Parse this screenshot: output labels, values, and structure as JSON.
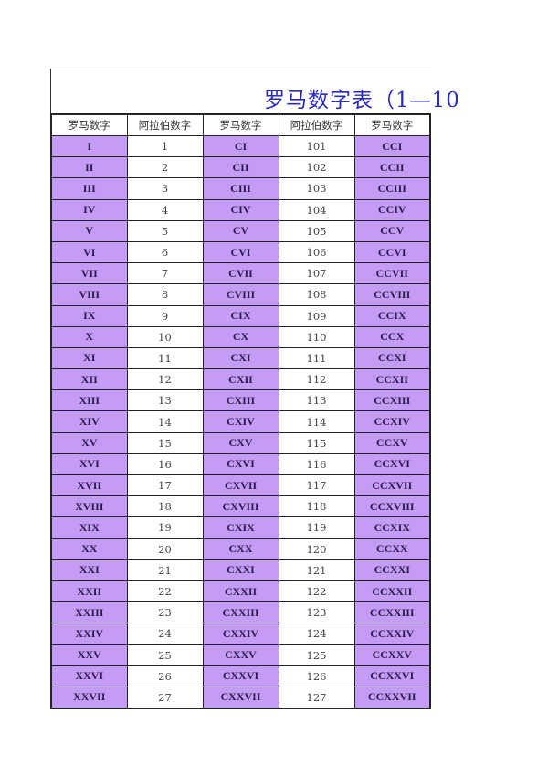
{
  "title": "罗马数字表（1—10",
  "colors": {
    "roman_cell": "#c49cf6",
    "title": "#2a2ac0"
  },
  "headers": [
    "罗马数字",
    "阿拉伯数字",
    "罗马数字",
    "阿拉伯数字",
    "罗马数字"
  ],
  "rows": [
    [
      "I",
      "1",
      "CI",
      "101",
      "CCI"
    ],
    [
      "II",
      "2",
      "CII",
      "102",
      "CCII"
    ],
    [
      "III",
      "3",
      "CIII",
      "103",
      "CCIII"
    ],
    [
      "IV",
      "4",
      "CIV",
      "104",
      "CCIV"
    ],
    [
      "V",
      "5",
      "CV",
      "105",
      "CCV"
    ],
    [
      "VI",
      "6",
      "CVI",
      "106",
      "CCVI"
    ],
    [
      "VII",
      "7",
      "CVII",
      "107",
      "CCVII"
    ],
    [
      "VIII",
      "8",
      "CVIII",
      "108",
      "CCVIII"
    ],
    [
      "IX",
      "9",
      "CIX",
      "109",
      "CCIX"
    ],
    [
      "X",
      "10",
      "CX",
      "110",
      "CCX"
    ],
    [
      "XI",
      "11",
      "CXI",
      "111",
      "CCXI"
    ],
    [
      "XII",
      "12",
      "CXII",
      "112",
      "CCXII"
    ],
    [
      "XIII",
      "13",
      "CXIII",
      "113",
      "CCXIII"
    ],
    [
      "XIV",
      "14",
      "CXIV",
      "114",
      "CCXIV"
    ],
    [
      "XV",
      "15",
      "CXV",
      "115",
      "CCXV"
    ],
    [
      "XVI",
      "16",
      "CXVI",
      "116",
      "CCXVI"
    ],
    [
      "XVII",
      "17",
      "CXVII",
      "117",
      "CCXVII"
    ],
    [
      "XVIII",
      "18",
      "CXVIII",
      "118",
      "CCXVIII"
    ],
    [
      "XIX",
      "19",
      "CXIX",
      "119",
      "CCXIX"
    ],
    [
      "XX",
      "20",
      "CXX",
      "120",
      "CCXX"
    ],
    [
      "XXI",
      "21",
      "CXXI",
      "121",
      "CCXXI"
    ],
    [
      "XXII",
      "22",
      "CXXII",
      "122",
      "CCXXII"
    ],
    [
      "XXIII",
      "23",
      "CXXIII",
      "123",
      "CCXXIII"
    ],
    [
      "XXIV",
      "24",
      "CXXIV",
      "124",
      "CCXXIV"
    ],
    [
      "XXV",
      "25",
      "CXXV",
      "125",
      "CCXXV"
    ],
    [
      "XXVI",
      "26",
      "CXXVI",
      "126",
      "CCXXVI"
    ],
    [
      "XXVII",
      "27",
      "CXXVII",
      "127",
      "CCXXVII"
    ]
  ]
}
